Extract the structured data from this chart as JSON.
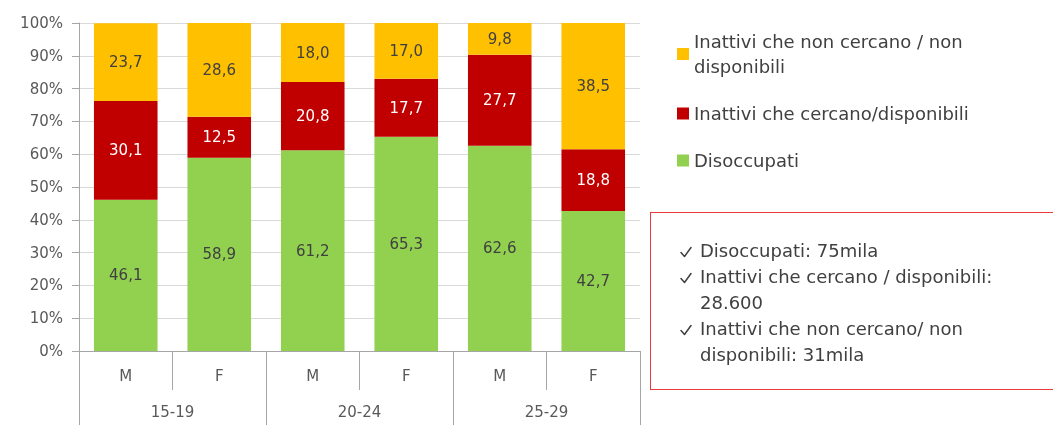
{
  "chart_data": {
    "type": "bar",
    "stacked": true,
    "categories": [
      "M",
      "F",
      "M",
      "F",
      "M",
      "F"
    ],
    "series": [
      {
        "name": "Disoccupati",
        "color": "#92d050",
        "values": [
          46.1,
          58.9,
          61.2,
          65.3,
          62.6,
          42.7
        ],
        "value_labels": [
          "46,1",
          "58,9",
          "61,2",
          "65,3",
          "62,6",
          "42,7"
        ]
      },
      {
        "name": "Inattivi che cercano/disponibili",
        "color": "#c00000",
        "values": [
          30.1,
          12.5,
          20.8,
          17.7,
          27.7,
          18.8
        ],
        "value_labels": [
          "30,1",
          "12,5",
          "20,8",
          "17,7",
          "27,7",
          "18,8"
        ]
      },
      {
        "name": "Inattivi che non cercano / non disponibili",
        "color": "#ffc000",
        "values": [
          23.7,
          28.6,
          18.0,
          17.0,
          9.8,
          38.5
        ],
        "value_labels": [
          "23,7",
          "28,6",
          "18,0",
          "17,0",
          "9,8",
          "38,5"
        ]
      }
    ],
    "ylim": [
      0,
      100
    ],
    "yticks": [
      {
        "value": 0,
        "label": "0%"
      },
      {
        "value": 10,
        "label": "10%"
      },
      {
        "value": 20,
        "label": "20%"
      },
      {
        "value": 30,
        "label": "30%"
      },
      {
        "value": 40,
        "label": "40%"
      },
      {
        "value": 50,
        "label": "50%"
      },
      {
        "value": 60,
        "label": "60%"
      },
      {
        "value": 70,
        "label": "70%"
      },
      {
        "value": 80,
        "label": "80%"
      },
      {
        "value": 90,
        "label": "90%"
      },
      {
        "value": 100,
        "label": "100%"
      }
    ],
    "grid": "y",
    "legend": "right",
    "annotations": [
      "15-19",
      "20-24",
      "25-29",
      "Disoccupati: 75mila",
      "Inattivi che cercano / disponibili: 28.600",
      "Inattivi che non cercano/ non disponibili: 31mila"
    ]
  }
}
